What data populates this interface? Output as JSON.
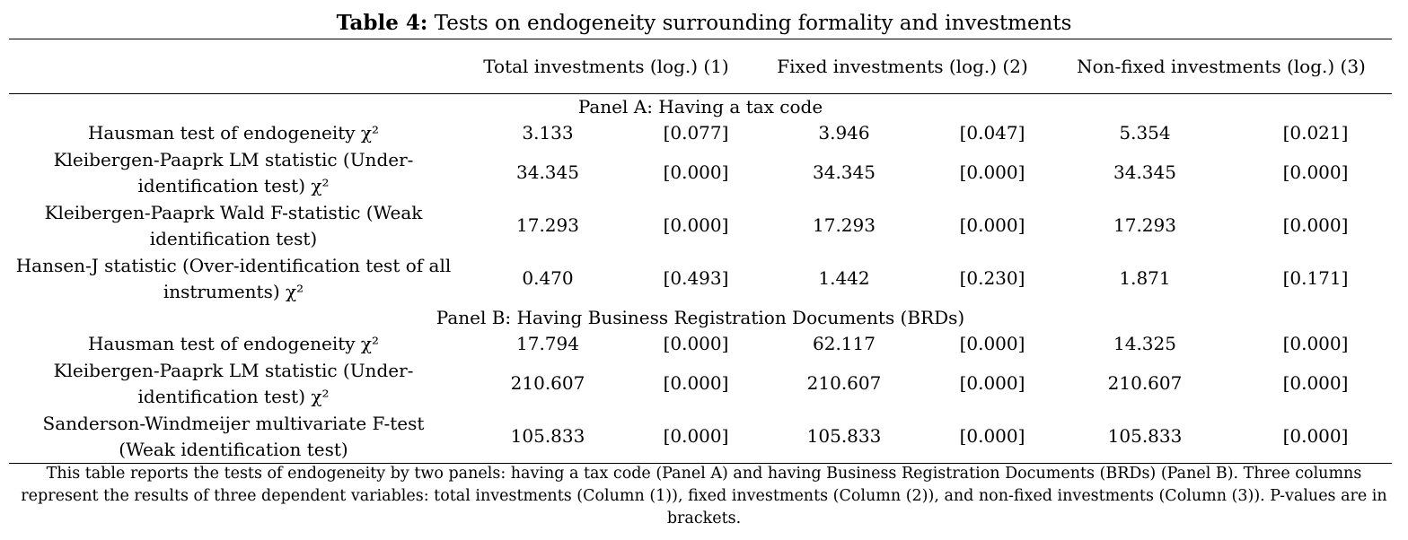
{
  "table": {
    "title_bold": "Table 4:",
    "title_rest": " Tests on endogeneity surrounding formality and investments",
    "headers": [
      "Total investments (log.) (1)",
      "Fixed investments (log.) (2)",
      "Non-fixed investments (log.) (3)"
    ],
    "panel_a": {
      "label": "Panel A: Having a tax code",
      "rows": [
        {
          "label": "Hausman test of endogeneity χ²",
          "values": [
            "3.133",
            "[0.077]",
            "3.946",
            "[0.047]",
            "5.354",
            "[0.021]"
          ]
        },
        {
          "label": "Kleibergen-Paaprk LM statistic (Under-identification test) χ²",
          "values": [
            "34.345",
            "[0.000]",
            "34.345",
            "[0.000]",
            "34.345",
            "[0.000]"
          ]
        },
        {
          "label": "Kleibergen-Paaprk Wald F-statistic (Weak identification test)",
          "values": [
            "17.293",
            "[0.000]",
            "17.293",
            "[0.000]",
            "17.293",
            "[0.000]"
          ]
        },
        {
          "label": "Hansen-J statistic (Over-identification test of all instruments) χ²",
          "values": [
            "0.470",
            "[0.493]",
            "1.442",
            "[0.230]",
            "1.871",
            "[0.171]"
          ]
        }
      ]
    },
    "panel_b": {
      "label": "Panel B: Having Business Registration Documents (BRDs)",
      "rows": [
        {
          "label": "Hausman test of endogeneity χ²",
          "values": [
            "17.794",
            "[0.000]",
            "62.117",
            "[0.000]",
            "14.325",
            "[0.000]"
          ]
        },
        {
          "label": "Kleibergen-Paaprk LM statistic (Under-identification test) χ²",
          "values": [
            "210.607",
            "[0.000]",
            "210.607",
            "[0.000]",
            "210.607",
            "[0.000]"
          ]
        },
        {
          "label": "Sanderson-Windmeijer multivariate F-test (Weak identification test)",
          "values": [
            "105.833",
            "[0.000]",
            "105.833",
            "[0.000]",
            "105.833",
            "[0.000]"
          ]
        }
      ]
    },
    "note": "This table reports the tests of endogeneity by two panels: having a tax code (Panel A) and having Business Registration Documents (BRDs) (Panel B). Three columns represent the results of three dependent variables: total investments (Column (1)), fixed investments (Column (2)), and non-fixed investments (Column (3)). P-values are in brackets."
  }
}
